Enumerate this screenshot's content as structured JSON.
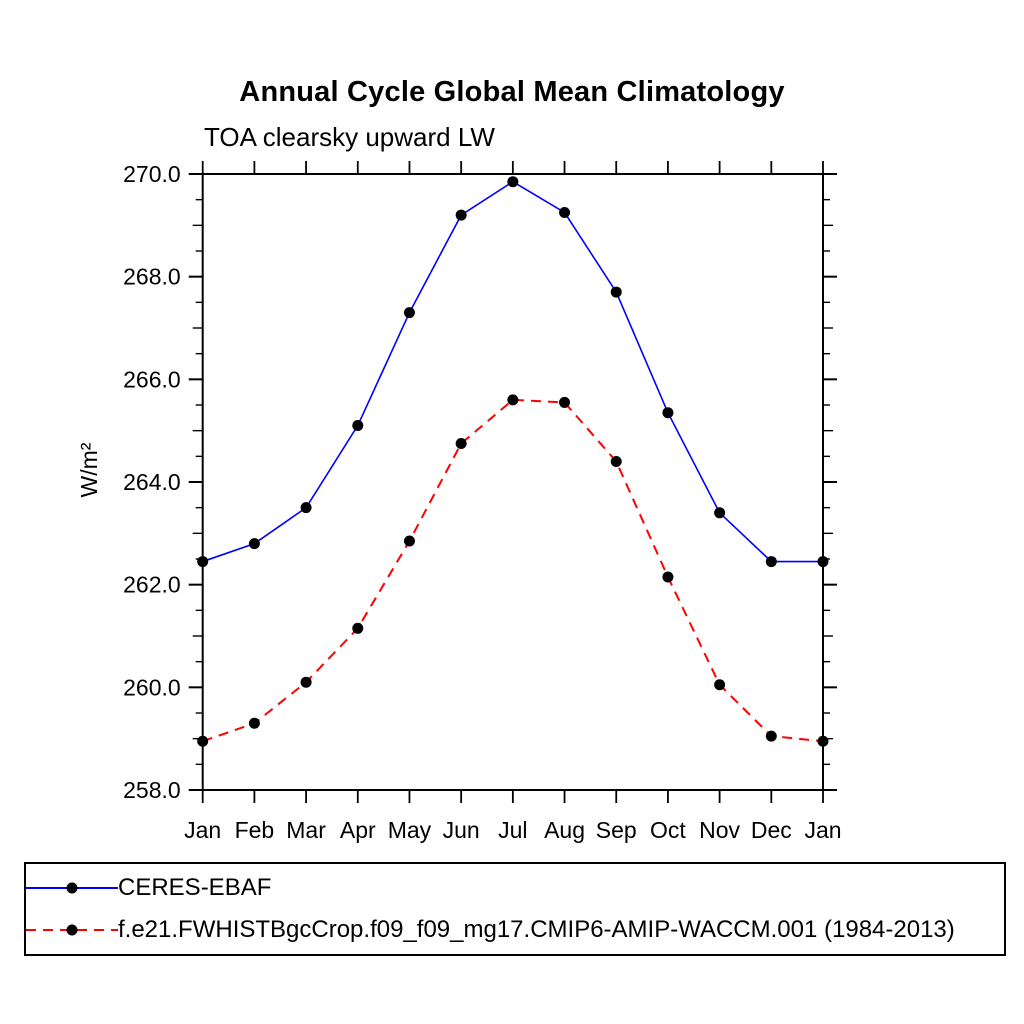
{
  "title": "Annual Cycle Global Mean Climatology",
  "subtitle": "TOA clearsky upward LW",
  "chart_data": {
    "type": "line",
    "title": "Annual Cycle Global Mean Climatology",
    "subtitle": "TOA clearsky upward LW",
    "ylabel": "W/m²",
    "xlabel": "",
    "ylim": [
      258.0,
      270.0
    ],
    "ytick_major_step": 2.0,
    "ytick_minor_step": 0.5,
    "ytick_labels": [
      "258.0",
      "260.0",
      "262.0",
      "264.0",
      "266.0",
      "268.0",
      "270.0"
    ],
    "grid": false,
    "legend_position": "bottom",
    "frame_color": "#000000",
    "x_categories": [
      "Jan",
      "Feb",
      "Mar",
      "Apr",
      "May",
      "Jun",
      "Jul",
      "Aug",
      "Sep",
      "Oct",
      "Nov",
      "Dec",
      "Jan"
    ],
    "series": [
      {
        "name": "CERES-EBAF",
        "color": "#0000ff",
        "style": "solid",
        "marker": "circle",
        "marker_color": "#000000",
        "values": [
          262.45,
          262.8,
          263.5,
          265.1,
          267.3,
          269.2,
          269.85,
          269.25,
          267.7,
          265.35,
          263.4,
          262.45,
          262.45
        ]
      },
      {
        "name": "f.e21.FWHISTBgcCrop.f09_f09_mg17.CMIP6-AMIP-WACCM.001 (1984-2013)",
        "color": "#ff0000",
        "style": "dashed",
        "marker": "circle",
        "marker_color": "#000000",
        "values": [
          258.95,
          259.3,
          260.1,
          261.15,
          262.85,
          264.75,
          265.6,
          265.55,
          264.4,
          262.15,
          260.05,
          259.05,
          258.95
        ]
      }
    ]
  }
}
